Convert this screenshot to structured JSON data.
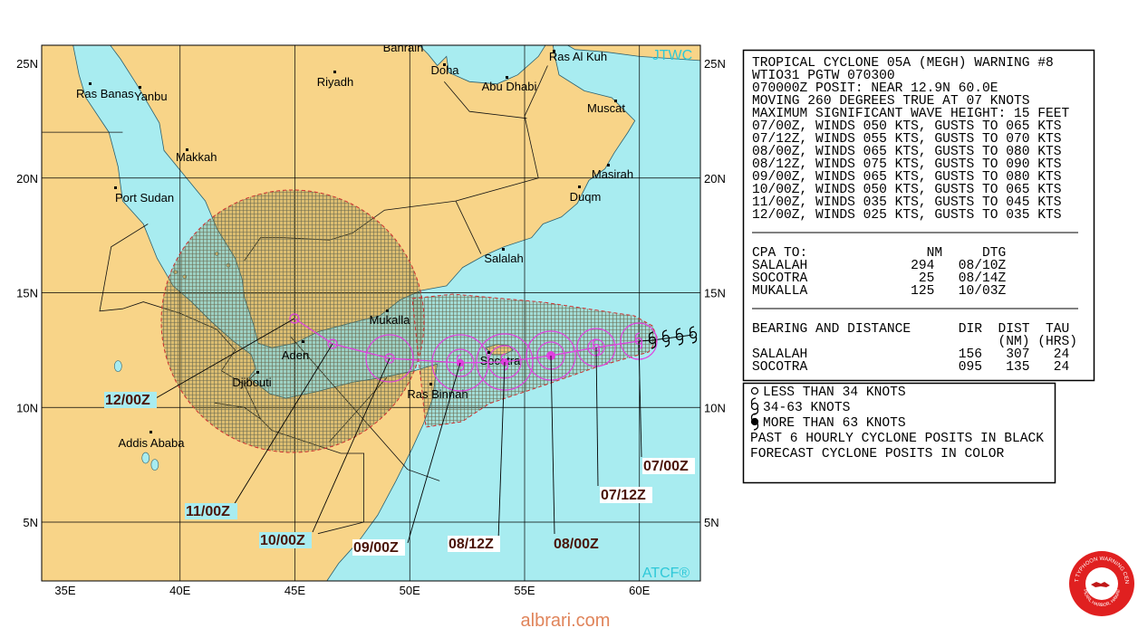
{
  "map": {
    "lat_labels": [
      "25N",
      "20N",
      "15N",
      "10N",
      "5N"
    ],
    "lon_labels": [
      "35E",
      "40E",
      "45E",
      "50E",
      "55E",
      "60E"
    ],
    "places": [
      "Bahrain",
      "Doha",
      "Abu Dhabi",
      "Ras Al Kuh",
      "Riyadh",
      "Ras Banas",
      "Yanbu",
      "Makkah",
      "Muscat",
      "Masirah",
      "Port Sudan",
      "Duqm",
      "Salalah",
      "Mukalla",
      "Aden",
      "Djibouti",
      "Socotra",
      "Ras Binnah",
      "Addis Ababa"
    ],
    "forecast_labels": [
      "07/00Z",
      "07/12Z",
      "08/00Z",
      "08/12Z",
      "09/00Z",
      "10/00Z",
      "11/00Z",
      "12/00Z"
    ],
    "source_top": "JTWC",
    "source_bottom": "ATCF®"
  },
  "panel": {
    "header_lines": [
      "TROPICAL CYCLONE 05A (MEGH) WARNING #8",
      "WTIO31 PGTW 070300",
      "070000Z POSIT: NEAR 12.9N 60.0E",
      "MOVING 260 DEGREES TRUE AT 07 KNOTS",
      "MAXIMUM SIGNIFICANT WAVE HEIGHT: 15 FEET",
      "07/00Z, WINDS 050 KTS, GUSTS TO 065 KTS",
      "07/12Z, WINDS 055 KTS, GUSTS TO 070 KTS",
      "08/00Z, WINDS 065 KTS, GUSTS TO 080 KTS",
      "08/12Z, WINDS 075 KTS, GUSTS TO 090 KTS",
      "09/00Z, WINDS 065 KTS, GUSTS TO 080 KTS",
      "10/00Z, WINDS 050 KTS, GUSTS TO 065 KTS",
      "11/00Z, WINDS 035 KTS, GUSTS TO 045 KTS",
      "12/00Z, WINDS 025 KTS, GUSTS TO 035 KTS"
    ],
    "cpa_lines": [
      "CPA TO:               NM     DTG",
      "SALALAH             294   08/10Z",
      "SOCOTRA              25   08/14Z",
      "MUKALLA             125   10/03Z"
    ],
    "bearing_lines": [
      "BEARING AND DISTANCE      DIR  DIST  TAU",
      "                               (NM) (HRS)",
      "SALALAH                   156   307   24",
      "SOCOTRA                   095   135   24"
    ]
  },
  "legend": [
    "LESS THAN 34 KNOTS",
    "34-63 KNOTS",
    "MORE THAN 63 KNOTS",
    "PAST 6 HOURLY CYCLONE POSITS IN BLACK",
    "FORECAST CYCLONE POSITS IN COLOR"
  ],
  "logo": {
    "top_text": "JOINT TYPHOON WARNING CENTER",
    "bottom_text": "PEARL HARBOR, HAWAII"
  },
  "watermark": "albrari.com"
}
